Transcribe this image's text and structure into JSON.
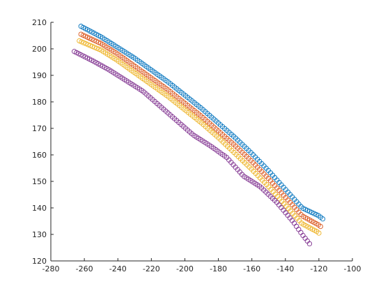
{
  "chart_data": {
    "type": "scatter",
    "title": "",
    "xlabel": "",
    "ylabel": "",
    "xlim": [
      -280,
      -100
    ],
    "ylim": [
      120,
      210
    ],
    "grid": false,
    "legend": "none",
    "marker": "open-circle",
    "xticks": [
      -280,
      -260,
      -240,
      -220,
      -200,
      -180,
      -160,
      -140,
      -120,
      -100
    ],
    "yticks": [
      120,
      130,
      140,
      150,
      160,
      170,
      180,
      190,
      200,
      210
    ],
    "xtick_labels": [
      "-280",
      "-260",
      "-240",
      "-220",
      "-200",
      "-180",
      "-160",
      "-140",
      "-120",
      "-100"
    ],
    "ytick_labels": [
      "120",
      "130",
      "140",
      "150",
      "160",
      "170",
      "180",
      "190",
      "200",
      "210"
    ],
    "series": [
      {
        "color": "#0072BD",
        "x": [
          -262,
          -250,
          -240,
          -230,
          -220,
          -210,
          -200,
          -190,
          -180,
          -170,
          -160,
          -150,
          -140,
          -130,
          -120,
          -117
        ],
        "y": [
          208.5,
          204.5,
          200.5,
          196.5,
          192,
          187.5,
          182.5,
          177.5,
          172,
          166.5,
          160.5,
          154,
          147,
          140,
          137,
          135.5
        ]
      },
      {
        "color": "#D95319",
        "x": [
          -262,
          -250,
          -240,
          -230,
          -220,
          -210,
          -200,
          -190,
          -180,
          -170,
          -160,
          -150,
          -140,
          -130,
          -120,
          -119
        ],
        "y": [
          205.5,
          202,
          198,
          193.5,
          189,
          184.5,
          179.5,
          174.5,
          169,
          163.5,
          157.5,
          151,
          144,
          137,
          133.5,
          133
        ]
      },
      {
        "color": "#EDB120",
        "x": [
          -263,
          -250,
          -240,
          -230,
          -220,
          -210,
          -200,
          -190,
          -180,
          -170,
          -160,
          -150,
          -140,
          -130,
          -121,
          -120
        ],
        "y": [
          203,
          199.5,
          195.5,
          191,
          186.5,
          182,
          177,
          172,
          166.5,
          160.5,
          154.5,
          148,
          141,
          134,
          131,
          130.5
        ]
      },
      {
        "color": "#7E2F8E",
        "x": [
          -266,
          -255,
          -245,
          -235,
          -225,
          -215,
          -205,
          -195,
          -185,
          -175,
          -165,
          -155,
          -145,
          -135,
          -130,
          -125
        ],
        "y": [
          199,
          195.5,
          192,
          188,
          184,
          178.5,
          173,
          167.5,
          163.5,
          159,
          152,
          148,
          142,
          134.5,
          130,
          126
        ]
      }
    ]
  }
}
